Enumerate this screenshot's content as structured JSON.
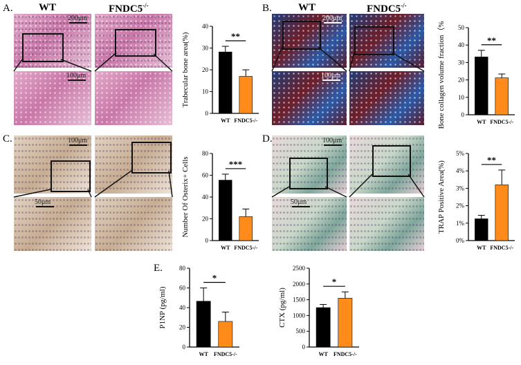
{
  "panels": {
    "A": {
      "label": "A.",
      "groups": [
        "WT",
        "FNDC5"
      ],
      "superscript": "-/-",
      "scales": [
        "200μm",
        "100μm"
      ]
    },
    "B": {
      "label": "B.",
      "groups": [
        "WT",
        "FNDC5"
      ],
      "superscript": "-/-",
      "scales": [
        "200μm",
        "100μm"
      ]
    },
    "C": {
      "label": "C.",
      "scales": [
        "100μm",
        "50μm"
      ]
    },
    "D": {
      "label": "D.",
      "scales": [
        "100μm",
        "50μm"
      ]
    },
    "E": {
      "label": "E."
    }
  },
  "colors": {
    "wt": "#000000",
    "ko": "#ff8c1a"
  },
  "chart_data": [
    {
      "id": "A",
      "type": "bar",
      "categories": [
        "WT",
        "FNDC5-/-"
      ],
      "values": [
        28.2,
        17.0
      ],
      "errors": [
        2.6,
        3.0
      ],
      "ylabel": "Trabecular bone area(%)",
      "ylim": [
        0,
        40
      ],
      "yticks": [
        0,
        10,
        20,
        30,
        40
      ],
      "significance": "**"
    },
    {
      "id": "B",
      "type": "bar",
      "categories": [
        "WT",
        "FNDC5-/-"
      ],
      "values": [
        33.2,
        21.2
      ],
      "errors": [
        3.8,
        2.2
      ],
      "ylabel": "Bone collagen volume fraction（%）",
      "ylim": [
        0,
        50
      ],
      "yticks": [
        0,
        10,
        20,
        30,
        40,
        50
      ],
      "significance": "**"
    },
    {
      "id": "C",
      "type": "bar",
      "categories": [
        "WT",
        "FNDC5-/-"
      ],
      "values": [
        55.5,
        22.0
      ],
      "errors": [
        5.5,
        7.0
      ],
      "ylabel": "Number Of Osterix+ Cells",
      "ylim": [
        0,
        80
      ],
      "yticks": [
        0,
        20,
        40,
        60,
        80
      ],
      "significance": "***"
    },
    {
      "id": "D",
      "type": "bar",
      "categories": [
        "WT",
        "FNDC5-/-"
      ],
      "values": [
        1.25,
        3.2
      ],
      "errors": [
        0.2,
        0.85
      ],
      "ylabel": "TRAP Positive Area(%)",
      "ylim": [
        0,
        5
      ],
      "yticks": [
        0,
        1,
        2,
        3,
        4,
        5
      ],
      "yticklabels": [
        "0%",
        "1%",
        "2%",
        "3%",
        "4%",
        "5%"
      ],
      "significance": "**"
    },
    {
      "id": "E1",
      "type": "bar",
      "categories": [
        "WT",
        "FNDC5-/-"
      ],
      "values": [
        46.5,
        26.0
      ],
      "errors": [
        13.5,
        9.5
      ],
      "ylabel": "P1NP (pg/ml)",
      "ylim": [
        0,
        80
      ],
      "yticks": [
        0,
        20,
        40,
        60,
        80
      ],
      "significance": "*"
    },
    {
      "id": "E2",
      "type": "bar",
      "categories": [
        "WT",
        "FNDC5-/-"
      ],
      "values": [
        1250,
        1550
      ],
      "errors": [
        100,
        200
      ],
      "ylabel": "CTX (pg/ml)",
      "ylim": [
        0,
        2500
      ],
      "yticks": [
        0,
        500,
        1000,
        1500,
        2000,
        2500
      ],
      "significance": "*"
    }
  ]
}
